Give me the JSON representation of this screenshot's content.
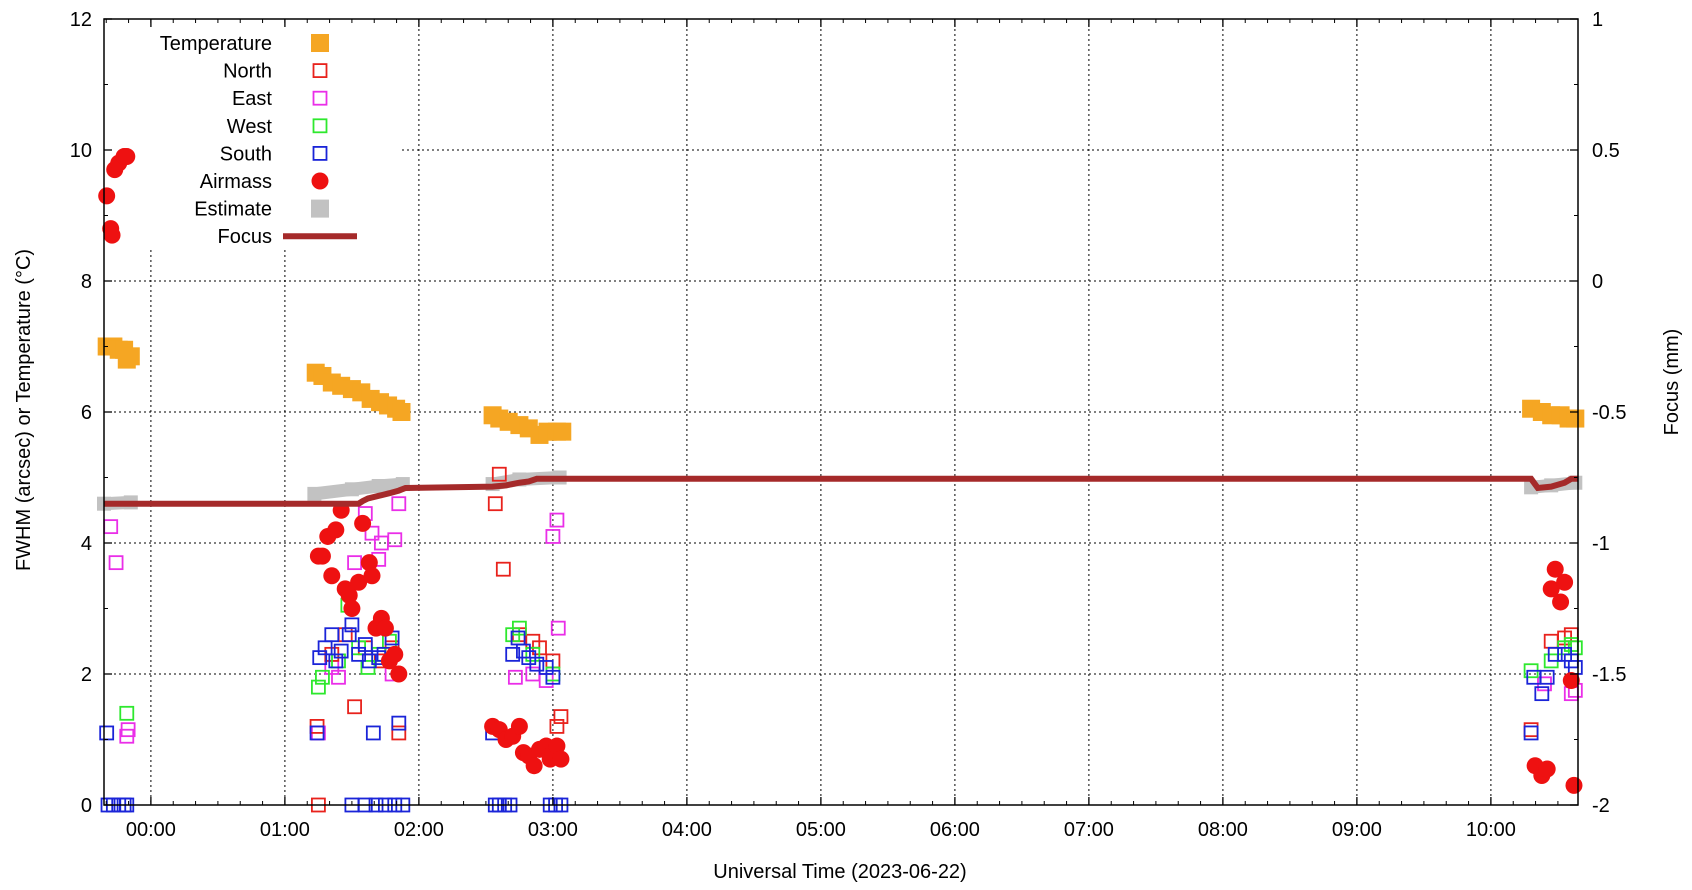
{
  "chart_data": {
    "type": "scatter",
    "xlabel": "Universal Time (2023-06-22)",
    "ylabel": "FWHM (arcsec) or Temperature (°C)",
    "y2label": "Focus (mm)",
    "x_range_hours": [
      -0.35,
      10.65
    ],
    "x_ticks": [
      "00:00",
      "01:00",
      "02:00",
      "03:00",
      "04:00",
      "05:00",
      "06:00",
      "07:00",
      "08:00",
      "09:00",
      "10:00"
    ],
    "ylim": [
      0,
      12
    ],
    "y_ticks": [
      "0",
      "2",
      "4",
      "6",
      "8",
      "10",
      "12"
    ],
    "y2lim": [
      -2,
      1
    ],
    "y2_ticks": [
      "-2",
      "-1.5",
      "-1",
      "-0.5",
      "0",
      "0.5",
      "1"
    ],
    "grid": true,
    "legend_position": "top-left",
    "colors": {
      "Temperature": "#f5a623",
      "North": "#e8221c",
      "East": "#ea2ee8",
      "West": "#2ee82e",
      "South": "#1a24d8",
      "Airmass": "#ee1111",
      "Estimate": "#c2c2c2",
      "Focus": "#a52a2a"
    },
    "series": [
      {
        "name": "Temperature",
        "marker": "filled-square",
        "points": [
          [
            -0.33,
            7.0
          ],
          [
            -0.28,
            7.0
          ],
          [
            -0.24,
            6.95
          ],
          [
            -0.2,
            6.95
          ],
          [
            -0.18,
            6.8
          ],
          [
            -0.15,
            6.85
          ],
          [
            1.23,
            6.6
          ],
          [
            1.28,
            6.55
          ],
          [
            1.35,
            6.45
          ],
          [
            1.42,
            6.4
          ],
          [
            1.5,
            6.35
          ],
          [
            1.57,
            6.3
          ],
          [
            1.64,
            6.2
          ],
          [
            1.71,
            6.15
          ],
          [
            1.77,
            6.1
          ],
          [
            1.83,
            6.05
          ],
          [
            1.87,
            6.0
          ],
          [
            2.55,
            5.95
          ],
          [
            2.6,
            5.9
          ],
          [
            2.67,
            5.85
          ],
          [
            2.75,
            5.8
          ],
          [
            2.82,
            5.75
          ],
          [
            2.9,
            5.65
          ],
          [
            2.96,
            5.7
          ],
          [
            3.03,
            5.7
          ],
          [
            3.07,
            5.7
          ],
          [
            10.3,
            6.05
          ],
          [
            10.38,
            6.0
          ],
          [
            10.45,
            5.95
          ],
          [
            10.52,
            5.95
          ],
          [
            10.58,
            5.9
          ],
          [
            10.63,
            5.9
          ]
        ]
      },
      {
        "name": "North",
        "marker": "open-square",
        "points": [
          [
            1.24,
            1.2
          ],
          [
            1.25,
            0.0
          ],
          [
            1.35,
            2.3
          ],
          [
            1.45,
            2.6
          ],
          [
            1.52,
            1.5
          ],
          [
            1.6,
            2.4
          ],
          [
            1.72,
            2.2
          ],
          [
            1.8,
            2.4
          ],
          [
            1.85,
            1.1
          ],
          [
            2.57,
            4.6
          ],
          [
            2.6,
            5.05
          ],
          [
            2.63,
            3.6
          ],
          [
            2.75,
            2.6
          ],
          [
            2.85,
            2.5
          ],
          [
            2.9,
            2.4
          ],
          [
            3.0,
            2.2
          ],
          [
            3.03,
            1.2
          ],
          [
            3.06,
            1.35
          ],
          [
            10.3,
            1.15
          ],
          [
            10.45,
            2.5
          ],
          [
            10.55,
            2.55
          ],
          [
            10.6,
            2.6
          ]
        ]
      },
      {
        "name": "East",
        "marker": "open-square",
        "points": [
          [
            -0.3,
            4.25
          ],
          [
            -0.26,
            3.7
          ],
          [
            -0.18,
            1.05
          ],
          [
            -0.17,
            1.15
          ],
          [
            1.25,
            1.1
          ],
          [
            1.35,
            2.1
          ],
          [
            1.4,
            1.95
          ],
          [
            1.52,
            3.7
          ],
          [
            1.6,
            4.45
          ],
          [
            1.65,
            4.15
          ],
          [
            1.7,
            3.75
          ],
          [
            1.72,
            4.0
          ],
          [
            1.8,
            2.0
          ],
          [
            1.82,
            4.05
          ],
          [
            1.85,
            4.6
          ],
          [
            2.72,
            1.95
          ],
          [
            2.85,
            2.0
          ],
          [
            2.95,
            1.9
          ],
          [
            3.0,
            4.1
          ],
          [
            3.03,
            4.35
          ],
          [
            3.04,
            2.7
          ],
          [
            10.4,
            1.85
          ],
          [
            10.6,
            1.7
          ],
          [
            10.63,
            1.75
          ]
        ]
      },
      {
        "name": "West",
        "marker": "open-square",
        "points": [
          [
            -0.18,
            1.4
          ],
          [
            1.25,
            1.8
          ],
          [
            1.28,
            1.95
          ],
          [
            1.4,
            2.2
          ],
          [
            1.47,
            3.05
          ],
          [
            1.55,
            2.4
          ],
          [
            1.62,
            2.1
          ],
          [
            1.7,
            2.3
          ],
          [
            1.78,
            2.5
          ],
          [
            2.7,
            2.6
          ],
          [
            2.75,
            2.7
          ],
          [
            2.85,
            2.3
          ],
          [
            3.0,
            2.0
          ],
          [
            10.3,
            2.05
          ],
          [
            10.45,
            2.2
          ],
          [
            10.55,
            2.4
          ],
          [
            10.6,
            2.45
          ],
          [
            10.63,
            2.4
          ]
        ]
      },
      {
        "name": "South",
        "marker": "open-square",
        "points": [
          [
            -0.33,
            1.1
          ],
          [
            -0.32,
            0.0
          ],
          [
            -0.28,
            0.0
          ],
          [
            -0.24,
            0.0
          ],
          [
            -0.2,
            0.0
          ],
          [
            -0.18,
            0.0
          ],
          [
            1.24,
            1.1
          ],
          [
            1.26,
            2.25
          ],
          [
            1.3,
            2.4
          ],
          [
            1.35,
            2.6
          ],
          [
            1.38,
            2.2
          ],
          [
            1.42,
            2.35
          ],
          [
            1.48,
            2.6
          ],
          [
            1.5,
            2.75
          ],
          [
            1.55,
            2.3
          ],
          [
            1.6,
            2.45
          ],
          [
            1.63,
            2.2
          ],
          [
            1.66,
            1.1
          ],
          [
            1.7,
            2.25
          ],
          [
            1.74,
            2.3
          ],
          [
            1.8,
            2.55
          ],
          [
            1.85,
            1.25
          ],
          [
            1.5,
            0.0
          ],
          [
            1.6,
            0.0
          ],
          [
            1.68,
            0.0
          ],
          [
            1.75,
            0.0
          ],
          [
            1.82,
            0.0
          ],
          [
            1.88,
            0.0
          ],
          [
            2.55,
            1.1
          ],
          [
            2.57,
            0.0
          ],
          [
            2.6,
            0.0
          ],
          [
            2.64,
            0.0
          ],
          [
            2.68,
            0.0
          ],
          [
            2.7,
            2.3
          ],
          [
            2.74,
            2.55
          ],
          [
            2.78,
            2.35
          ],
          [
            2.82,
            2.25
          ],
          [
            2.88,
            2.15
          ],
          [
            2.95,
            2.1
          ],
          [
            3.0,
            1.95
          ],
          [
            2.98,
            0.0
          ],
          [
            3.02,
            0.0
          ],
          [
            3.06,
            0.0
          ],
          [
            10.3,
            1.1
          ],
          [
            10.32,
            1.95
          ],
          [
            10.38,
            1.7
          ],
          [
            10.42,
            1.95
          ],
          [
            10.48,
            2.3
          ],
          [
            10.55,
            2.3
          ],
          [
            10.6,
            2.2
          ],
          [
            10.63,
            2.1
          ]
        ]
      },
      {
        "name": "Airmass",
        "marker": "filled-circle",
        "points": [
          [
            -0.33,
            9.3
          ],
          [
            -0.3,
            8.8
          ],
          [
            -0.29,
            8.7
          ],
          [
            -0.27,
            9.7
          ],
          [
            -0.24,
            9.8
          ],
          [
            -0.2,
            9.9
          ],
          [
            -0.18,
            9.9
          ],
          [
            1.25,
            3.8
          ],
          [
            1.28,
            3.8
          ],
          [
            1.32,
            4.1
          ],
          [
            1.35,
            3.5
          ],
          [
            1.38,
            4.2
          ],
          [
            1.42,
            4.5
          ],
          [
            1.45,
            3.3
          ],
          [
            1.48,
            3.2
          ],
          [
            1.5,
            3.0
          ],
          [
            1.55,
            3.4
          ],
          [
            1.58,
            4.3
          ],
          [
            1.63,
            3.7
          ],
          [
            1.65,
            3.5
          ],
          [
            1.68,
            2.7
          ],
          [
            1.72,
            2.85
          ],
          [
            1.75,
            2.7
          ],
          [
            1.78,
            2.2
          ],
          [
            1.82,
            2.3
          ],
          [
            1.85,
            2.0
          ],
          [
            2.55,
            1.2
          ],
          [
            2.6,
            1.15
          ],
          [
            2.65,
            1.0
          ],
          [
            2.7,
            1.05
          ],
          [
            2.75,
            1.2
          ],
          [
            2.78,
            0.8
          ],
          [
            2.82,
            0.75
          ],
          [
            2.86,
            0.6
          ],
          [
            2.9,
            0.85
          ],
          [
            2.95,
            0.9
          ],
          [
            2.98,
            0.7
          ],
          [
            3.0,
            0.8
          ],
          [
            3.03,
            0.9
          ],
          [
            3.06,
            0.7
          ],
          [
            10.33,
            0.6
          ],
          [
            10.38,
            0.45
          ],
          [
            10.42,
            0.55
          ],
          [
            10.45,
            3.3
          ],
          [
            10.48,
            3.6
          ],
          [
            10.52,
            3.1
          ],
          [
            10.55,
            3.4
          ],
          [
            10.6,
            1.9
          ],
          [
            10.62,
            0.3
          ]
        ]
      },
      {
        "name": "Estimate",
        "marker": "filled-square-line",
        "points": [
          [
            -0.35,
            4.6
          ],
          [
            -0.15,
            4.62
          ],
          [
            1.22,
            4.75
          ],
          [
            1.5,
            4.82
          ],
          [
            1.7,
            4.87
          ],
          [
            1.88,
            4.9
          ],
          [
            2.55,
            4.9
          ],
          [
            2.75,
            4.97
          ],
          [
            3.05,
            5.0
          ],
          [
            10.3,
            4.85
          ],
          [
            10.45,
            4.88
          ],
          [
            10.63,
            4.92
          ]
        ]
      },
      {
        "name": "Focus",
        "marker": "line",
        "axis": "right",
        "points": [
          [
            -0.35,
            -0.85
          ],
          [
            1.55,
            -0.85
          ],
          [
            1.58,
            -0.84
          ],
          [
            1.62,
            -0.83
          ],
          [
            1.7,
            -0.82
          ],
          [
            1.78,
            -0.81
          ],
          [
            1.85,
            -0.8
          ],
          [
            1.9,
            -0.79
          ],
          [
            2.55,
            -0.785
          ],
          [
            2.65,
            -0.78
          ],
          [
            2.75,
            -0.77
          ],
          [
            2.82,
            -0.765
          ],
          [
            2.88,
            -0.755
          ],
          [
            3.0,
            -0.755
          ],
          [
            10.3,
            -0.755
          ],
          [
            10.35,
            -0.79
          ],
          [
            10.45,
            -0.785
          ],
          [
            10.55,
            -0.77
          ],
          [
            10.6,
            -0.755
          ],
          [
            10.65,
            -0.755
          ]
        ]
      }
    ]
  }
}
